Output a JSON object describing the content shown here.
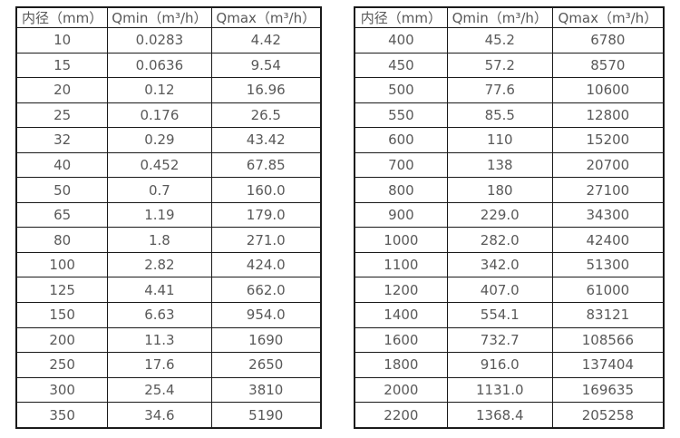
{
  "colors": {
    "background": "#ffffff",
    "border": "#1a1a1a",
    "text": "#595959"
  },
  "chart_data": [
    {
      "type": "table",
      "columns": [
        "内径（mm）",
        "Qmin（m³/h）",
        "Qmax（m³/h）"
      ],
      "rows": [
        [
          "10",
          "0.0283",
          "4.42"
        ],
        [
          "15",
          "0.0636",
          "9.54"
        ],
        [
          "20",
          "0.12",
          "16.96"
        ],
        [
          "25",
          "0.176",
          "26.5"
        ],
        [
          "32",
          "0.29",
          "43.42"
        ],
        [
          "40",
          "0.452",
          "67.85"
        ],
        [
          "50",
          "0.7",
          "160.0"
        ],
        [
          "65",
          "1.19",
          "179.0"
        ],
        [
          "80",
          "1.8",
          "271.0"
        ],
        [
          "100",
          "2.82",
          "424.0"
        ],
        [
          "125",
          "4.41",
          "662.0"
        ],
        [
          "150",
          "6.63",
          "954.0"
        ],
        [
          "200",
          "11.3",
          "1690"
        ],
        [
          "250",
          "17.6",
          "2650"
        ],
        [
          "300",
          "25.4",
          "3810"
        ],
        [
          "350",
          "34.6",
          "5190"
        ]
      ]
    },
    {
      "type": "table",
      "columns": [
        "内径（mm）",
        "Qmin（m³/h）",
        "Qmax（m³/h）"
      ],
      "rows": [
        [
          "400",
          "45.2",
          "6780"
        ],
        [
          "450",
          "57.2",
          "8570"
        ],
        [
          "500",
          "77.6",
          "10600"
        ],
        [
          "550",
          "85.5",
          "12800"
        ],
        [
          "600",
          "110",
          "15200"
        ],
        [
          "700",
          "138",
          "20700"
        ],
        [
          "800",
          "180",
          "27100"
        ],
        [
          "900",
          "229.0",
          "34300"
        ],
        [
          "1000",
          "282.0",
          "42400"
        ],
        [
          "1100",
          "342.0",
          "51300"
        ],
        [
          "1200",
          "407.0",
          "61000"
        ],
        [
          "1400",
          "554.1",
          "83121"
        ],
        [
          "1600",
          "732.7",
          "108566"
        ],
        [
          "1800",
          "916.0",
          "137404"
        ],
        [
          "2000",
          "1131.0",
          "169635"
        ],
        [
          "2200",
          "1368.4",
          "205258"
        ]
      ]
    }
  ]
}
